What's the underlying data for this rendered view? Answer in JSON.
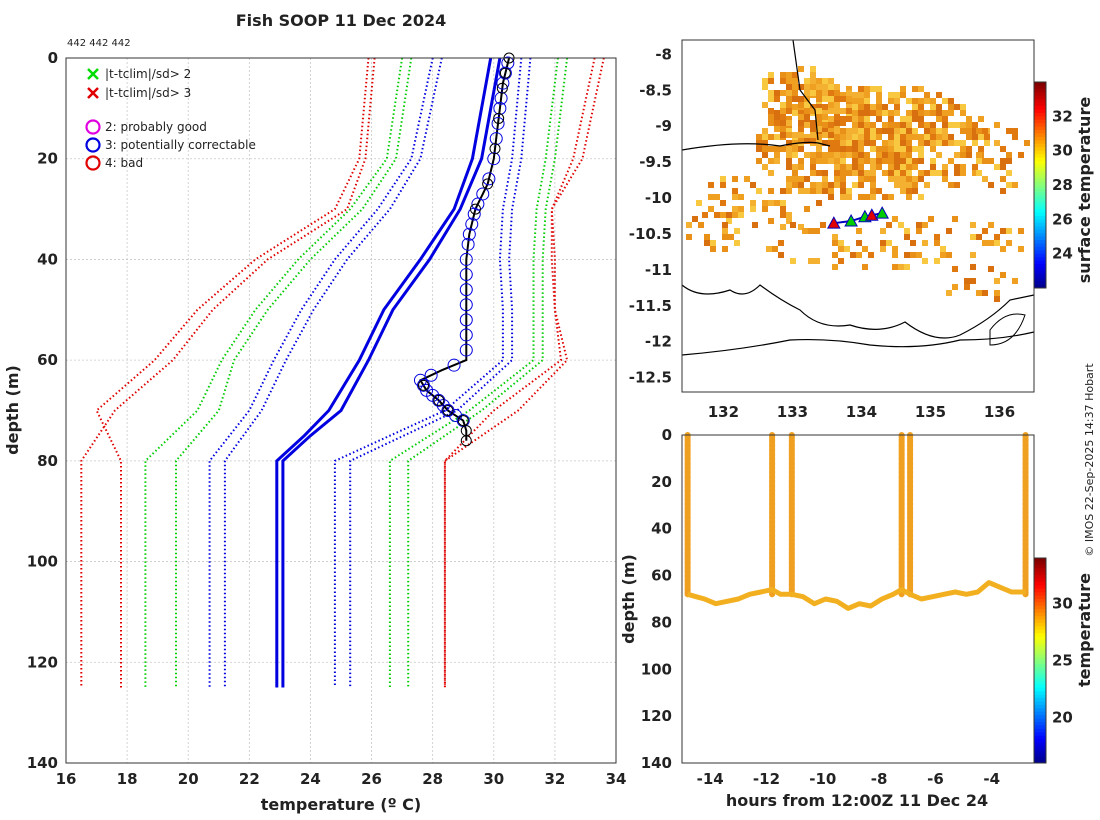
{
  "title": "Fish SOOP 11 Dec 2024",
  "id_label": "442 442 442",
  "copyright": "© IMOS 22-Sep-2025 14:37 Hobart",
  "legend": {
    "items": [
      {
        "symbol": "x",
        "color": "#00dd00",
        "label": "|t-tclim|/sd> 2"
      },
      {
        "symbol": "x",
        "color": "#e00000",
        "label": "|t-tclim|/sd> 3"
      },
      {
        "symbol": "o",
        "color": "#e000e0",
        "label": "2: probably good"
      },
      {
        "symbol": "o",
        "color": "#0000e0",
        "label": "3: potentially correctable"
      },
      {
        "symbol": "o",
        "color": "#e00000",
        "label": "4: bad"
      }
    ]
  },
  "chart_data": [
    {
      "id": "profile",
      "type": "line",
      "xlabel": "temperature (º C)",
      "ylabel": "depth (m)",
      "xlim": [
        16,
        34
      ],
      "ylim": [
        140,
        0
      ],
      "xticks": [
        "16",
        "18",
        "20",
        "22",
        "24",
        "26",
        "28",
        "30",
        "32",
        "34"
      ],
      "yticks": [
        "0",
        "20",
        "40",
        "60",
        "80",
        "100",
        "120",
        "140"
      ],
      "grid": true,
      "series": [
        {
          "name": "clim mean",
          "color": "#0000e0",
          "style": "solid",
          "depth": [
            0,
            20,
            30,
            40,
            50,
            60,
            70,
            75,
            80,
            125
          ],
          "temp": [
            29.9,
            29.3,
            28.7,
            27.6,
            26.4,
            25.6,
            24.6,
            23.8,
            22.9,
            22.9
          ]
        },
        {
          "name": "clim mean 2",
          "color": "#0000e0",
          "style": "solid",
          "depth": [
            0,
            20,
            30,
            40,
            50,
            60,
            70,
            75,
            80,
            125
          ],
          "temp": [
            30.2,
            29.6,
            28.9,
            27.9,
            26.7,
            25.9,
            25.0,
            24.0,
            23.1,
            23.1
          ]
        },
        {
          "name": "clim -1sd a",
          "color": "#0000e0",
          "style": "dotted",
          "depth": [
            0,
            20,
            30,
            40,
            50,
            60,
            70,
            80,
            125
          ],
          "temp": [
            28.3,
            27.6,
            26.6,
            25.2,
            24.1,
            23.2,
            22.4,
            21.2,
            21.2
          ]
        },
        {
          "name": "clim -1sd b",
          "color": "#0000e0",
          "style": "dotted",
          "depth": [
            0,
            20,
            30,
            40,
            50,
            60,
            70,
            80,
            125
          ],
          "temp": [
            28.0,
            27.3,
            26.2,
            24.8,
            23.7,
            22.8,
            22.0,
            20.7,
            20.7
          ]
        },
        {
          "name": "clim +1sd a",
          "color": "#0000e0",
          "style": "dotted",
          "depth": [
            0,
            20,
            30,
            40,
            50,
            60,
            70,
            80,
            125
          ],
          "temp": [
            31.2,
            30.9,
            30.6,
            30.5,
            30.6,
            30.6,
            28.8,
            25.3,
            25.3
          ]
        },
        {
          "name": "clim +1sd b",
          "color": "#0000e0",
          "style": "dotted",
          "depth": [
            0,
            20,
            30,
            40,
            50,
            60,
            70,
            80,
            125
          ],
          "temp": [
            30.9,
            30.6,
            30.3,
            30.2,
            30.3,
            30.3,
            28.4,
            24.8,
            24.8
          ]
        },
        {
          "name": "clim -2sd a",
          "color": "#00cc00",
          "style": "dotted",
          "depth": [
            0,
            20,
            30,
            40,
            50,
            60,
            70,
            80,
            125
          ],
          "temp": [
            27.3,
            26.8,
            25.7,
            24.0,
            22.6,
            21.5,
            21.0,
            19.6,
            19.6
          ]
        },
        {
          "name": "clim -2sd b",
          "color": "#00cc00",
          "style": "dotted",
          "depth": [
            0,
            20,
            30,
            40,
            50,
            60,
            70,
            80,
            125
          ],
          "temp": [
            27.0,
            26.5,
            25.3,
            23.6,
            22.2,
            21.1,
            20.3,
            18.6,
            18.6
          ]
        },
        {
          "name": "clim +2sd a",
          "color": "#00cc00",
          "style": "dotted",
          "depth": [
            0,
            20,
            30,
            40,
            50,
            60,
            70,
            80,
            125
          ],
          "temp": [
            32.4,
            32.0,
            31.7,
            31.6,
            31.6,
            31.6,
            29.6,
            27.2,
            27.2
          ]
        },
        {
          "name": "clim +2sd b",
          "color": "#00cc00",
          "style": "dotted",
          "depth": [
            0,
            20,
            30,
            40,
            50,
            60,
            70,
            80,
            125
          ],
          "temp": [
            32.1,
            31.7,
            31.4,
            31.3,
            31.3,
            31.3,
            29.2,
            26.6,
            26.6
          ]
        },
        {
          "name": "clim -3sd a",
          "color": "#e00000",
          "style": "dotted",
          "depth": [
            0,
            20,
            30,
            40,
            50,
            60,
            70,
            80,
            125
          ],
          "temp": [
            26.1,
            25.8,
            25.2,
            22.6,
            20.8,
            19.5,
            17.6,
            16.5,
            16.5
          ]
        },
        {
          "name": "clim -3sd b",
          "color": "#e00000",
          "style": "dotted",
          "depth": [
            0,
            20,
            30,
            40,
            50,
            60,
            70,
            80,
            125
          ],
          "temp": [
            25.9,
            25.6,
            24.8,
            22.2,
            20.3,
            18.9,
            17.0,
            17.8,
            17.8
          ]
        },
        {
          "name": "clim +3sd a",
          "color": "#e00000",
          "style": "dotted",
          "depth": [
            0,
            20,
            30,
            40,
            50,
            60,
            70,
            80,
            125
          ],
          "temp": [
            33.6,
            32.9,
            31.9,
            31.9,
            32.0,
            32.4,
            30.8,
            28.4,
            28.4
          ]
        },
        {
          "name": "clim +3sd b",
          "color": "#e00000",
          "style": "dotted",
          "depth": [
            0,
            20,
            30,
            40,
            50,
            60,
            70,
            80,
            125
          ],
          "temp": [
            33.3,
            32.6,
            31.9,
            32.0,
            32.0,
            32.2,
            30.0,
            28.4,
            28.4
          ]
        },
        {
          "name": "XBT profile",
          "color": "#000000",
          "style": "solid",
          "depth": [
            0,
            5,
            10,
            15,
            20,
            25,
            30,
            35,
            40,
            45,
            50,
            55,
            60,
            62,
            64,
            66,
            68,
            70,
            72,
            74,
            76
          ],
          "temp": [
            30.5,
            30.3,
            30.2,
            30.1,
            30.0,
            29.8,
            29.4,
            29.2,
            29.1,
            29.1,
            29.1,
            29.1,
            29.1,
            28.3,
            27.6,
            27.8,
            28.2,
            28.5,
            29.0,
            29.1,
            29.1
          ]
        }
      ],
      "flags": {
        "blue_circles_depth": [
          1,
          3,
          5,
          8,
          10,
          13,
          16,
          20,
          24,
          27,
          29,
          31,
          33,
          35,
          37,
          40,
          43,
          46,
          49,
          52,
          55,
          58,
          61,
          63,
          64,
          65,
          66,
          67,
          68,
          69,
          70,
          71,
          72
        ],
        "black_circles_depth": [
          0,
          3,
          6,
          12,
          18,
          25,
          30,
          65,
          68,
          70,
          72,
          74,
          76
        ]
      }
    },
    {
      "id": "map",
      "type": "heatmap",
      "xlim": [
        131.4,
        136.5
      ],
      "ylim": [
        -12.7,
        -7.8
      ],
      "xticks": [
        "132",
        "133",
        "134",
        "135",
        "136"
      ],
      "yticks": [
        "-8",
        "-8.5",
        "-9",
        "-9.5",
        "-10",
        "-10.5",
        "-11",
        "-11.5",
        "-12",
        "-12.5"
      ],
      "colorbar_label": "surface temperature",
      "colorbar_ticks": [
        "24",
        "26",
        "28",
        "30",
        "32"
      ],
      "colorbar_range": [
        22,
        34
      ],
      "track": [
        {
          "lon": 133.6,
          "lat": -10.35,
          "color": "#e00000",
          "marker": "triangle"
        },
        {
          "lon": 133.85,
          "lat": -10.32,
          "color": "#00cc00",
          "marker": "triangle"
        },
        {
          "lon": 134.05,
          "lat": -10.26,
          "color": "#00cc00",
          "marker": "triangle"
        },
        {
          "lon": 134.15,
          "lat": -10.24,
          "color": "#e00000",
          "marker": "triangle"
        },
        {
          "lon": 134.3,
          "lat": -10.21,
          "color": "#00cc00",
          "marker": "triangle"
        }
      ]
    },
    {
      "id": "timeseries",
      "type": "scatter",
      "xlabel": "hours from 12:00Z 11 Dec 24",
      "ylabel": "depth (m)",
      "xlim": [
        -15,
        -2.5
      ],
      "ylim": [
        140,
        0
      ],
      "xticks": [
        "-14",
        "-12",
        "-10",
        "-8",
        "-6",
        "-4"
      ],
      "yticks": [
        "0",
        "20",
        "40",
        "60",
        "80",
        "100",
        "120",
        "140"
      ],
      "colorbar_label": "temperature",
      "colorbar_ticks": [
        "20",
        "25",
        "30"
      ],
      "colorbar_range": [
        16,
        34
      ],
      "drops_hours": [
        -14.8,
        -11.8,
        -11.1,
        -7.2,
        -6.9,
        -2.8
      ],
      "bottom_hours": [
        -14.8,
        -14.5,
        -14.2,
        -13.8,
        -13.4,
        -13.0,
        -12.6,
        -12.2,
        -11.8,
        -11.5,
        -11.1,
        -10.7,
        -10.3,
        -9.9,
        -9.5,
        -9.1,
        -8.7,
        -8.3,
        -7.9,
        -7.5,
        -7.2,
        -6.9,
        -6.5,
        -6.1,
        -5.7,
        -5.3,
        -4.9,
        -4.5,
        -4.1,
        -3.7,
        -3.3,
        -2.8
      ],
      "bottom_depth": [
        68,
        69,
        70,
        72,
        71,
        70,
        68,
        67,
        66,
        68,
        68,
        69,
        72,
        70,
        71,
        74,
        72,
        73,
        70,
        68,
        66,
        68,
        70,
        69,
        68,
        67,
        68,
        67,
        63,
        65,
        67,
        67
      ]
    }
  ]
}
